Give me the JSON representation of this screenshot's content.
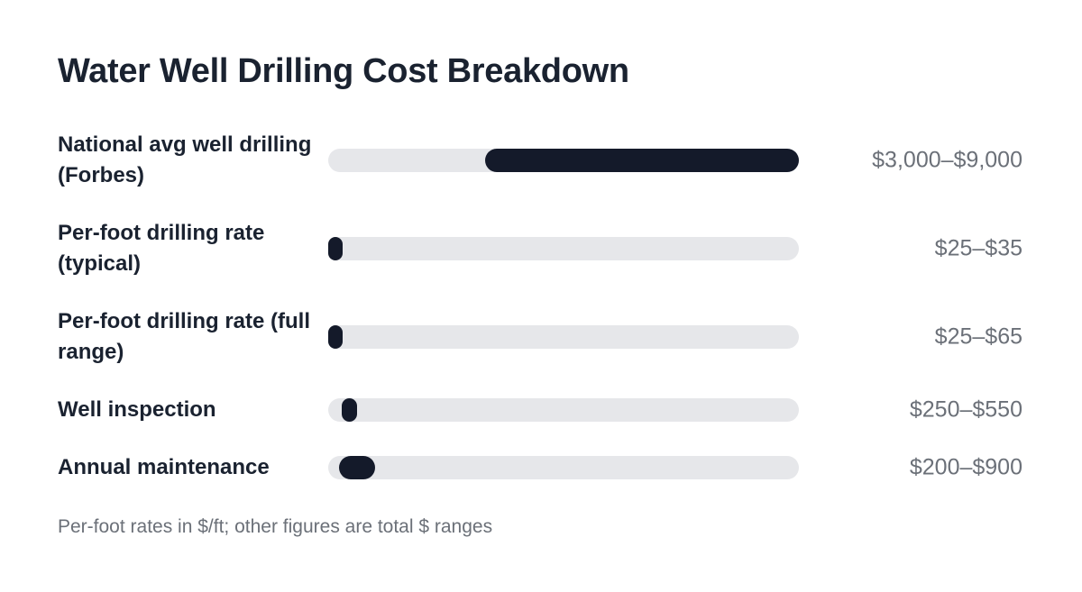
{
  "chart_data": {
    "type": "bar",
    "subtype": "horizontal range bars",
    "title": "Water Well Drilling Cost Breakdown",
    "footnote": "Per-foot rates in $/ft; other figures are total $ ranges",
    "scale_max": 9000,
    "categories": [
      "National avg well drilling (Forbes)",
      "Per-foot drilling rate (typical)",
      "Per-foot drilling rate (full range)",
      "Well inspection",
      "Annual maintenance"
    ],
    "rows": [
      {
        "label": "National avg well drilling (Forbes)",
        "low": 3000,
        "high": 9000,
        "value_label": "$3,000–$9,000"
      },
      {
        "label": "Per-foot drilling rate (typical)",
        "low": 25,
        "high": 35,
        "value_label": "$25–$35"
      },
      {
        "label": "Per-foot drilling rate (full range)",
        "low": 25,
        "high": 65,
        "value_label": "$25–$65"
      },
      {
        "label": "Well inspection",
        "low": 250,
        "high": 550,
        "value_label": "$250–$550"
      },
      {
        "label": "Annual maintenance",
        "low": 200,
        "high": 900,
        "value_label": "$200–$900"
      }
    ],
    "colors": {
      "bar": "#141a2a",
      "track": "#e6e7ea"
    }
  }
}
